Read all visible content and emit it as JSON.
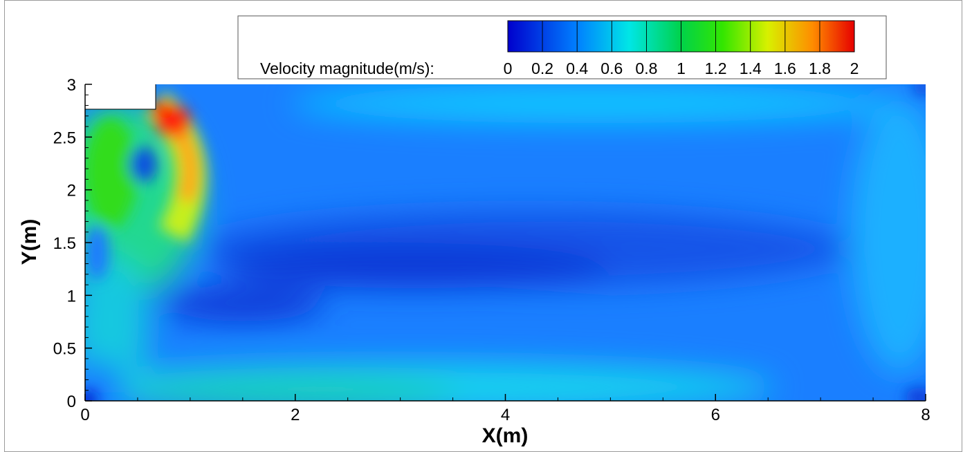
{
  "chart_data": {
    "type": "heatmap",
    "title": "",
    "xlabel": "X(m)",
    "ylabel": "Y(m)",
    "xlim": [
      0,
      8
    ],
    "ylim": [
      0,
      3
    ],
    "x_ticks": [
      "0",
      "2",
      "4",
      "6",
      "8"
    ],
    "y_ticks": [
      "0",
      "0.5",
      "1",
      "1.5",
      "2",
      "2.5",
      "3"
    ],
    "colorbar": {
      "label": "Velocity magnitude(m/s):",
      "range": [
        0,
        2
      ],
      "ticks": [
        "0",
        "0.2",
        "0.4",
        "0.6",
        "0.8",
        "1",
        "1.2",
        "1.4",
        "1.6",
        "1.8",
        "2"
      ]
    },
    "inlet_step": {
      "x_max": 0.67,
      "y_min": 2.77
    },
    "features": [
      {
        "x": 0.85,
        "y": 2.7,
        "value": 2.0
      },
      {
        "x": 0.3,
        "y": 2.3,
        "value": 1.0
      },
      {
        "x": 0.6,
        "y": 2.2,
        "value": 0.3
      },
      {
        "x": 0.15,
        "y": 1.6,
        "value": 0.9
      },
      {
        "x": 0.3,
        "y": 0.8,
        "value": 0.55
      },
      {
        "x": 0.05,
        "y": 1.4,
        "value": 0.2
      },
      {
        "x": 3.0,
        "y": 0.1,
        "value": 0.8
      },
      {
        "x": 4.8,
        "y": 2.85,
        "value": 0.55
      },
      {
        "x": 3.9,
        "y": 1.35,
        "value": 0.1
      },
      {
        "x": 1.5,
        "y": 0.9,
        "value": 0.1
      },
      {
        "x": 7.8,
        "y": 1.6,
        "value": 0.45
      },
      {
        "x": 7.95,
        "y": 0.05,
        "value": 0.1
      },
      {
        "x": 0.02,
        "y": 0.02,
        "value": 0.05
      }
    ]
  }
}
